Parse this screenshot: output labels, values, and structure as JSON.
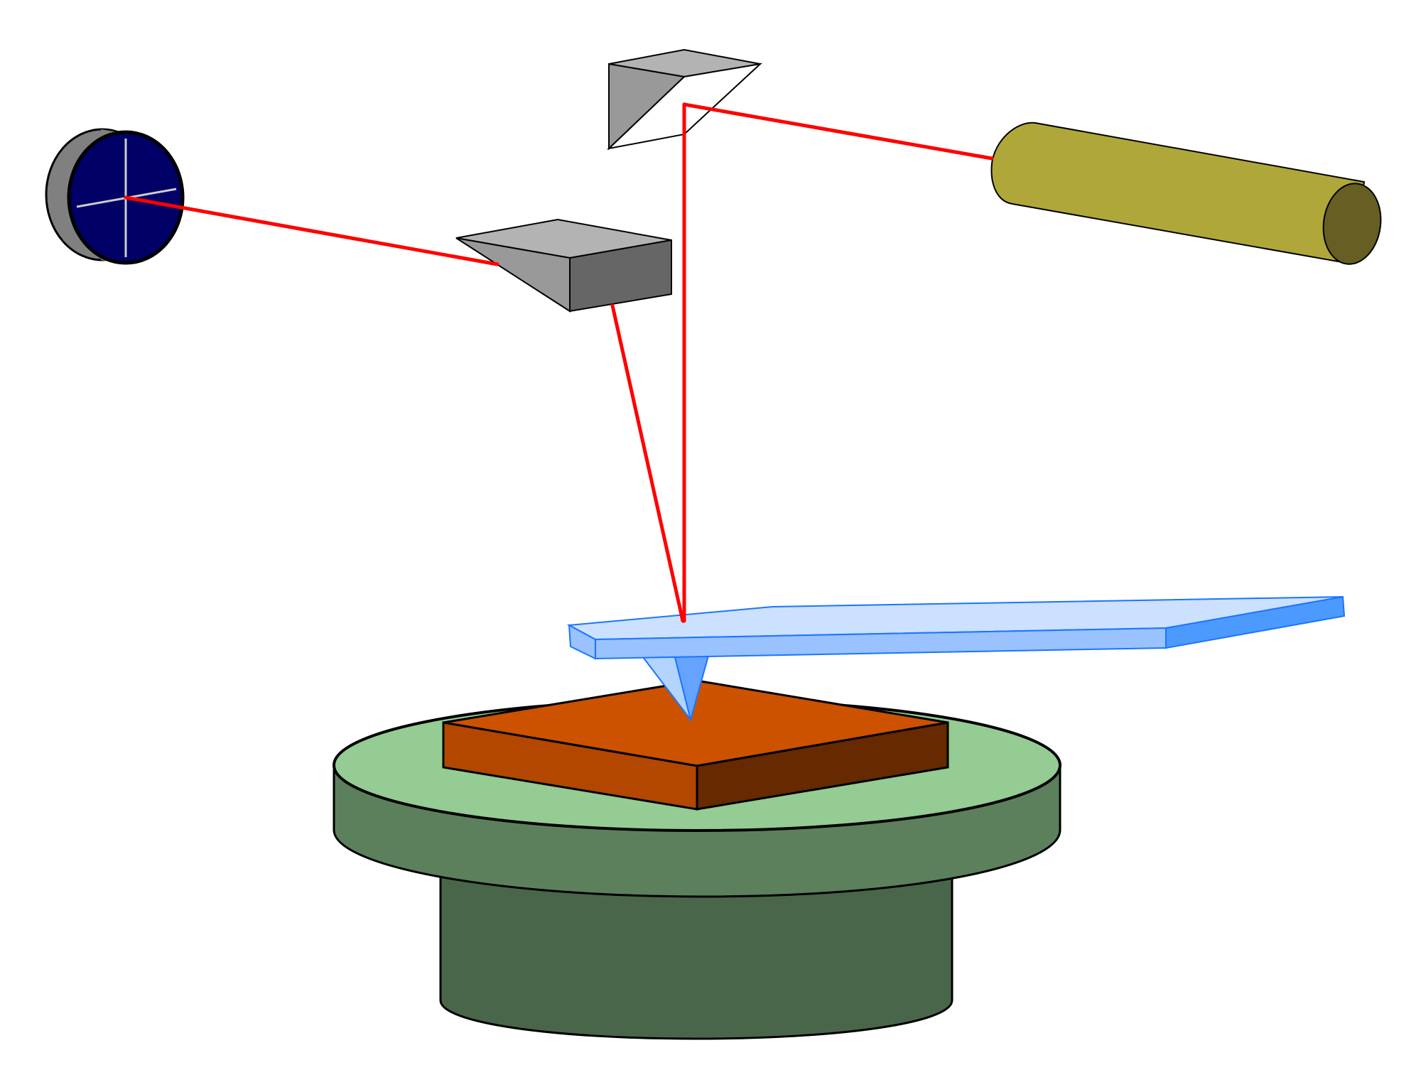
{
  "diagram": {
    "kind": "atomic-force-microscope-optical-lever",
    "text_labels": [],
    "components": [
      {
        "name": "photodetector",
        "face_color": "#000066",
        "rim_color": "#808080",
        "crosshair_color": "#cccccc"
      },
      {
        "name": "laser",
        "body_color": "#b0a73a",
        "end_color": "#665e22"
      },
      {
        "name": "turning-prism",
        "colors": [
          "#b3b3b3",
          "#999999",
          "#ffffff"
        ]
      },
      {
        "name": "deflection-mirror",
        "colors": [
          "#b3b3b3",
          "#999999",
          "#666666"
        ]
      },
      {
        "name": "cantilever",
        "colors": [
          "#cce0ff",
          "#99c2ff",
          "#4d9aff"
        ],
        "edge_color": "#1a75ff"
      },
      {
        "name": "probe-tip",
        "colors": [
          "#b3d4ff",
          "#66a3ff"
        ]
      },
      {
        "name": "sample",
        "colors": [
          "#cc5200",
          "#b34700",
          "#662900"
        ]
      },
      {
        "name": "scanner-stage",
        "colors": [
          "#94cc94",
          "#5c805c",
          "#4a664a"
        ]
      }
    ],
    "laser_beam_color": "#ff0000"
  }
}
